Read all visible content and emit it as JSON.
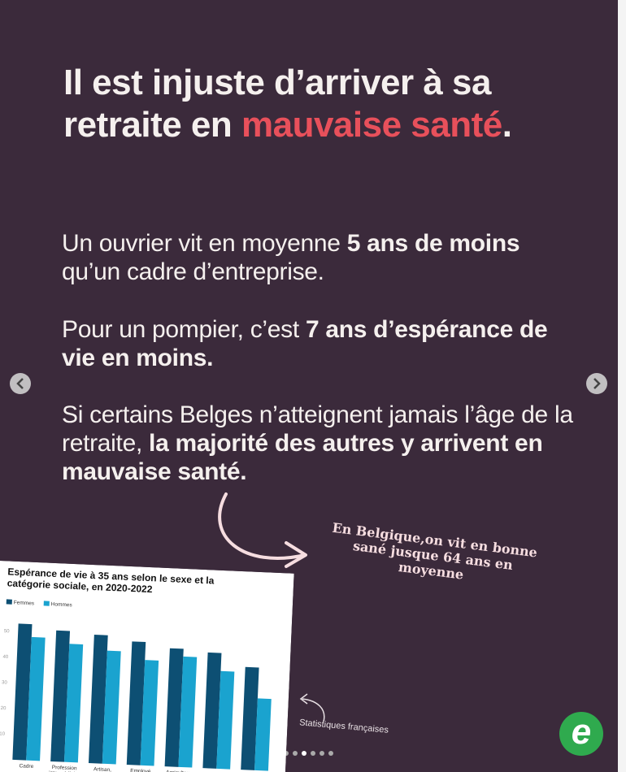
{
  "headline": [
    {
      "text": "Il est injuste d’arriver à sa retraite en ",
      "style": "regular"
    },
    {
      "text": "mauvaise santé",
      "style": "accent"
    },
    {
      "text": ".",
      "style": "regular"
    }
  ],
  "paragraphs": [
    [
      {
        "text": "Un ouvrier vit en moyenne ",
        "style": "regular"
      },
      {
        "text": "5 ans de moins",
        "style": "bold"
      },
      {
        "text": " qu’un cadre d’entreprise.",
        "style": "regular"
      }
    ],
    [
      {
        "text": "Pour un pompier, c’est ",
        "style": "regular"
      },
      {
        "text": "7 ans d’espérance de vie en moins.",
        "style": "bold"
      }
    ],
    [
      {
        "text": "Si certains Belges n’atteignent jamais l’âge de la retraite, ",
        "style": "regular"
      },
      {
        "text": "la majorité des autres y arrivent en mauvaise santé.",
        "style": "bold"
      }
    ]
  ],
  "annotation": "En Belgique,on vit en bonne sané jusque 64 ans en moyenne",
  "source_note": "Statistiques françaises",
  "logo": "e",
  "chart_data": {
    "type": "bar",
    "title": "Espérance de vie à 35 ans selon le sexe et la catégorie sociale, en 2020-2022",
    "categories": [
      "Cadre",
      "Profession intermédiaire",
      "Artisan,",
      "Employé",
      "Agriculteur",
      null,
      null
    ],
    "series": [
      {
        "name": "Femmes",
        "color": "#0d4f73",
        "values": [
          53,
          51,
          50,
          48,
          46,
          45,
          40
        ]
      },
      {
        "name": "Hommes",
        "color": "#1aa3cf",
        "values": [
          48,
          46,
          44,
          41,
          43,
          38,
          28
        ]
      }
    ],
    "ylim": [
      0,
      55
    ],
    "yticks": [
      10,
      20,
      30,
      40,
      50
    ],
    "grid": false,
    "legend": "top-left"
  }
}
